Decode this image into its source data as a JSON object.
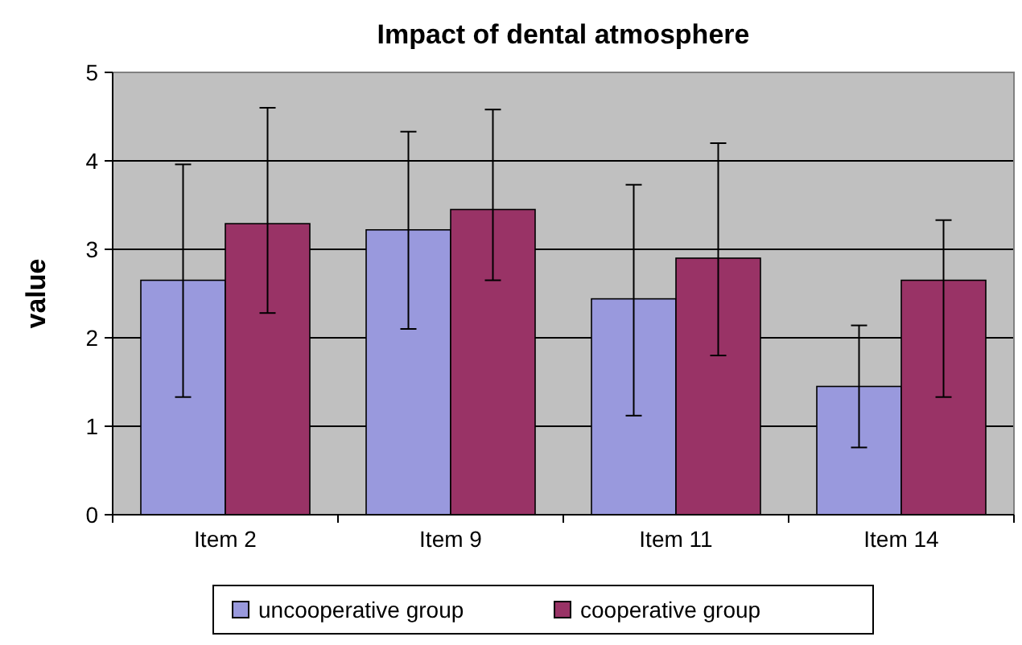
{
  "chart_data": {
    "type": "bar",
    "title": "Impact of dental atmosphere",
    "ylabel": "value",
    "categories": [
      "Item 2",
      "Item 9",
      "Item 11",
      "Item 14"
    ],
    "series": [
      {
        "name": "uncooperative group",
        "color": "#9999dd",
        "values": [
          2.65,
          3.22,
          2.44,
          1.45
        ],
        "errors": [
          [
            1.33,
            3.96
          ],
          [
            2.1,
            4.33
          ],
          [
            1.12,
            3.73
          ],
          [
            0.76,
            2.14
          ]
        ]
      },
      {
        "name": "cooperative group",
        "color": "#993366",
        "values": [
          3.29,
          3.45,
          2.9,
          2.65
        ],
        "errors": [
          [
            2.28,
            4.6
          ],
          [
            2.65,
            4.58
          ],
          [
            1.8,
            4.2
          ],
          [
            1.33,
            3.33
          ]
        ]
      }
    ],
    "ylim": [
      0,
      5
    ],
    "yticks": [
      0,
      1,
      2,
      3,
      4,
      5
    ],
    "grid": "y",
    "legend": "bottom"
  }
}
